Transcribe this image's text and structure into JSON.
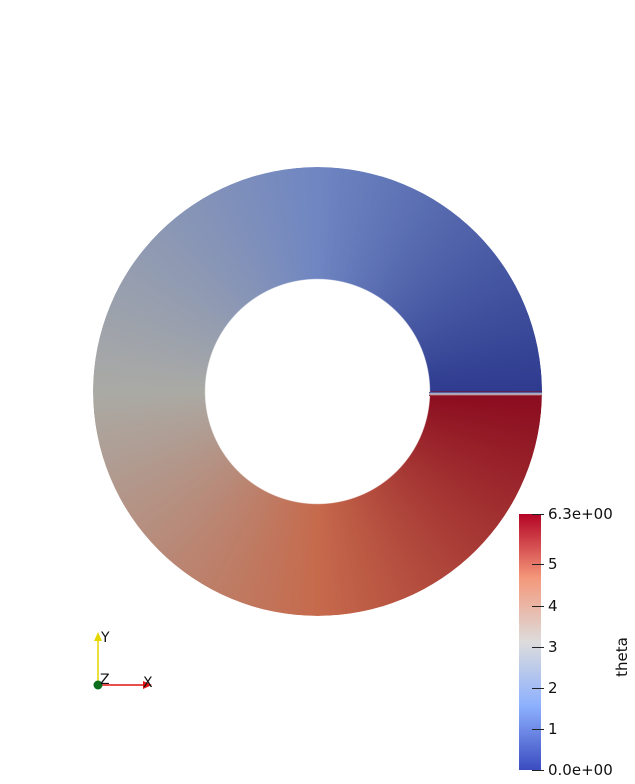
{
  "scalar_field": {
    "name": "theta",
    "range_min_label": "0.0e+00",
    "range_max_label": "6.3e+00",
    "tick_labels": [
      "5",
      "4",
      "3",
      "2",
      "1"
    ],
    "colormap": [
      "#3b4cc0",
      "#8db0fe",
      "#dddcdc",
      "#f4987a",
      "#b40426"
    ]
  },
  "orientation_axes": {
    "x_label": "X",
    "y_label": "Y",
    "z_label": "Z",
    "x_color": "#e01414",
    "y_color": "#e6d600",
    "z_color": "#0a6e1e"
  },
  "ring_colors": {
    "start": "#2e3b8f",
    "quarter": "#6f86c2",
    "half": "#aaaaa5",
    "three_quarter": "#c66a4c",
    "end": "#8a0b1f"
  }
}
